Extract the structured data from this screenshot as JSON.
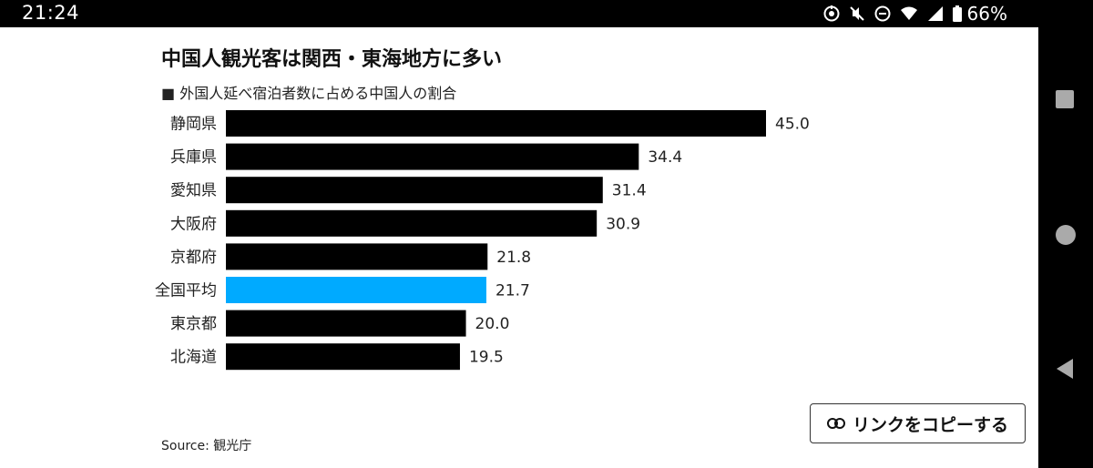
{
  "status_bar": {
    "time": "21:24",
    "battery_percent": "66%",
    "icons": [
      "notification-icon",
      "mute-icon",
      "dnd-icon",
      "wifi-icon",
      "signal-icon",
      "battery-icon"
    ]
  },
  "chart_data": {
    "type": "bar",
    "orientation": "horizontal",
    "title": "中国人観光客は関西・東海地方に多い",
    "subtitle": "■ 外国人延べ宿泊者数に占める中国人の割合",
    "categories": [
      "静岡県",
      "兵庫県",
      "愛知県",
      "大阪府",
      "京都府",
      "全国平均",
      "東京都",
      "北海道"
    ],
    "values": [
      45.0,
      34.4,
      31.4,
      30.9,
      21.8,
      21.7,
      20.0,
      19.5
    ],
    "value_labels": [
      "45.0",
      "34.4",
      "31.4",
      "30.9",
      "21.8",
      "21.7",
      "20.0",
      "19.5"
    ],
    "highlight_category": "全国平均",
    "bar_color": "#000000",
    "highlight_color": "#00aaff",
    "xlim": [
      0,
      45
    ],
    "grid": false,
    "source": "Source: 観光庁"
  },
  "share": {
    "copy_label": "リンクをコピーする",
    "icon": "link-icon"
  },
  "nav": {
    "buttons": [
      "recents-button",
      "home-button",
      "back-button"
    ]
  }
}
